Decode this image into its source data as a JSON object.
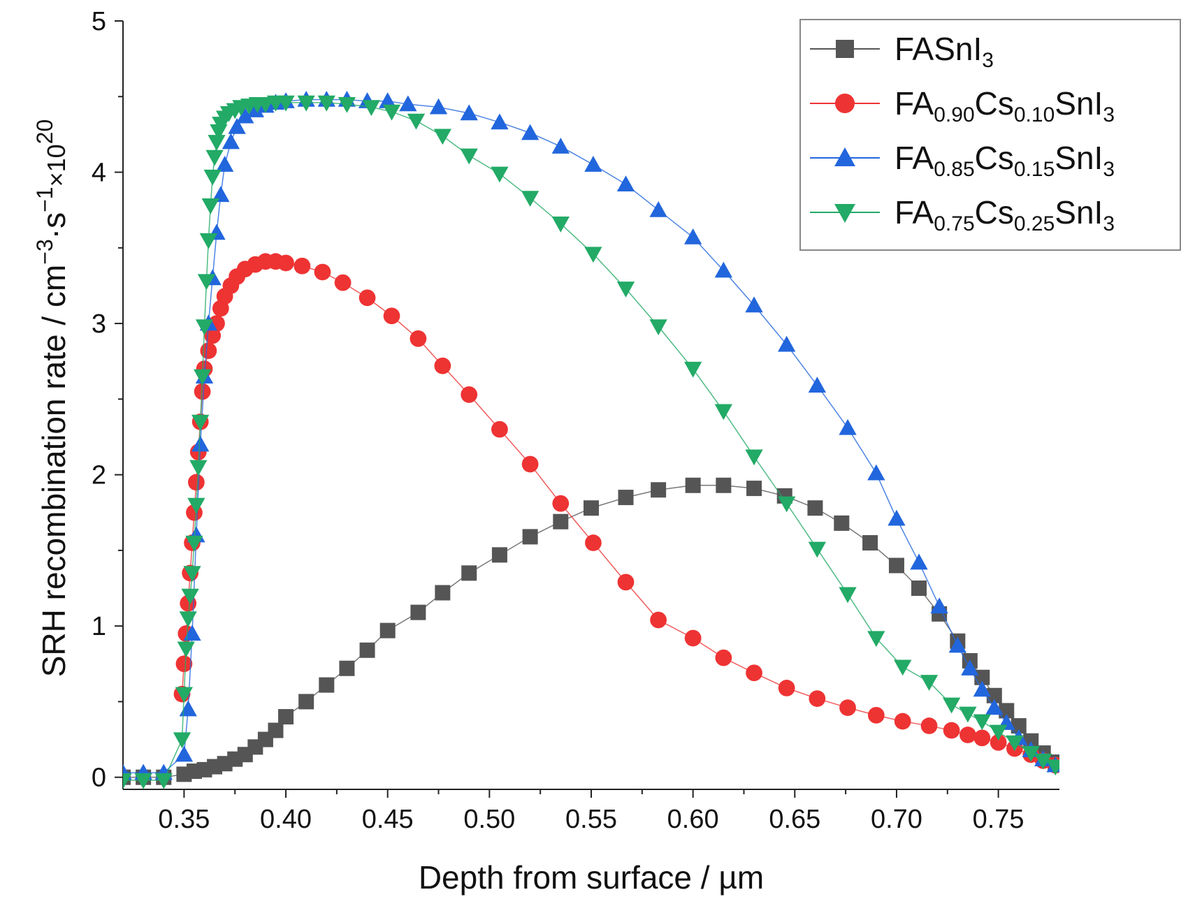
{
  "chart_data": {
    "type": "line",
    "xlabel": "Depth from surface / µm",
    "ylabel": {
      "prefix": "SRH recombination rate / cm",
      "exp1": "−3",
      "mid": "·s",
      "exp2": "−1",
      "times": "×10",
      "exp3": "20"
    },
    "xlim": [
      0.32,
      0.78
    ],
    "ylim": [
      -0.08,
      5.0
    ],
    "x_ticks": [
      "0.35",
      "0.40",
      "0.45",
      "0.50",
      "0.55",
      "0.60",
      "0.65",
      "0.70",
      "0.75"
    ],
    "x_tick_values": [
      0.35,
      0.4,
      0.45,
      0.5,
      0.55,
      0.6,
      0.65,
      0.7,
      0.75
    ],
    "y_ticks": [
      "0",
      "1",
      "2",
      "3",
      "4",
      "5"
    ],
    "y_tick_values": [
      0,
      1,
      2,
      3,
      4,
      5
    ],
    "grid": false,
    "legend_position": "top-right",
    "series": [
      {
        "name_parts": [
          {
            "t": "FASnI"
          },
          {
            "t": "3",
            "sub": true
          }
        ],
        "color": "#555555",
        "marker": "square",
        "x": [
          0.32,
          0.33,
          0.34,
          0.35,
          0.355,
          0.36,
          0.365,
          0.37,
          0.375,
          0.38,
          0.385,
          0.39,
          0.395,
          0.4,
          0.41,
          0.42,
          0.43,
          0.44,
          0.45,
          0.465,
          0.477,
          0.49,
          0.505,
          0.52,
          0.535,
          0.55,
          0.567,
          0.583,
          0.6,
          0.615,
          0.63,
          0.645,
          0.66,
          0.673,
          0.687,
          0.7,
          0.711,
          0.721,
          0.73,
          0.736,
          0.742,
          0.748,
          0.754,
          0.76,
          0.766,
          0.772,
          0.778
        ],
        "y": [
          0.0,
          0.0,
          0.0,
          0.02,
          0.04,
          0.05,
          0.07,
          0.09,
          0.12,
          0.15,
          0.2,
          0.25,
          0.31,
          0.4,
          0.5,
          0.61,
          0.72,
          0.84,
          0.97,
          1.09,
          1.22,
          1.35,
          1.47,
          1.59,
          1.69,
          1.78,
          1.85,
          1.9,
          1.93,
          1.93,
          1.91,
          1.86,
          1.78,
          1.68,
          1.55,
          1.4,
          1.25,
          1.08,
          0.9,
          0.77,
          0.66,
          0.54,
          0.44,
          0.34,
          0.24,
          0.16,
          0.1
        ]
      },
      {
        "name_parts": [
          {
            "t": "FA"
          },
          {
            "t": "0.90",
            "sub": true
          },
          {
            "t": "Cs"
          },
          {
            "t": "0.10",
            "sub": true
          },
          {
            "t": "SnI"
          },
          {
            "t": "3",
            "sub": true
          }
        ],
        "color": "#ee3333",
        "marker": "circle",
        "x": [
          0.349,
          0.35,
          0.351,
          0.352,
          0.353,
          0.354,
          0.355,
          0.356,
          0.357,
          0.358,
          0.359,
          0.36,
          0.362,
          0.364,
          0.366,
          0.368,
          0.37,
          0.373,
          0.376,
          0.38,
          0.385,
          0.39,
          0.395,
          0.4,
          0.408,
          0.418,
          0.428,
          0.44,
          0.452,
          0.465,
          0.477,
          0.49,
          0.505,
          0.52,
          0.535,
          0.551,
          0.567,
          0.583,
          0.6,
          0.615,
          0.63,
          0.646,
          0.661,
          0.676,
          0.69,
          0.703,
          0.716,
          0.727,
          0.735,
          0.742,
          0.75,
          0.758,
          0.766,
          0.772,
          0.778
        ],
        "y": [
          0.55,
          0.75,
          0.95,
          1.15,
          1.35,
          1.55,
          1.75,
          1.95,
          2.15,
          2.35,
          2.55,
          2.7,
          2.82,
          2.92,
          3.0,
          3.1,
          3.18,
          3.25,
          3.31,
          3.36,
          3.39,
          3.41,
          3.41,
          3.4,
          3.38,
          3.34,
          3.27,
          3.17,
          3.05,
          2.9,
          2.72,
          2.53,
          2.3,
          2.07,
          1.81,
          1.55,
          1.29,
          1.04,
          0.92,
          0.79,
          0.69,
          0.59,
          0.52,
          0.46,
          0.41,
          0.37,
          0.34,
          0.31,
          0.28,
          0.26,
          0.23,
          0.19,
          0.15,
          0.11,
          0.08
        ]
      },
      {
        "name_parts": [
          {
            "t": "FA"
          },
          {
            "t": "0.85",
            "sub": true
          },
          {
            "t": "Cs"
          },
          {
            "t": "0.15",
            "sub": true
          },
          {
            "t": "SnI"
          },
          {
            "t": "3",
            "sub": true
          }
        ],
        "color": "#2266dd",
        "marker": "triangle-up",
        "x": [
          0.32,
          0.33,
          0.34,
          0.35,
          0.352,
          0.354,
          0.356,
          0.358,
          0.36,
          0.362,
          0.364,
          0.366,
          0.368,
          0.37,
          0.373,
          0.376,
          0.38,
          0.385,
          0.39,
          0.395,
          0.4,
          0.41,
          0.42,
          0.43,
          0.44,
          0.45,
          0.46,
          0.475,
          0.49,
          0.505,
          0.52,
          0.535,
          0.551,
          0.567,
          0.583,
          0.6,
          0.615,
          0.63,
          0.646,
          0.661,
          0.676,
          0.69,
          0.7,
          0.711,
          0.721,
          0.73,
          0.736,
          0.742,
          0.748,
          0.754,
          0.76,
          0.766,
          0.772,
          0.778
        ],
        "y": [
          0.03,
          0.03,
          0.03,
          0.15,
          0.45,
          0.95,
          1.6,
          2.2,
          2.65,
          3.0,
          3.3,
          3.6,
          3.85,
          4.05,
          4.2,
          4.3,
          4.37,
          4.41,
          4.44,
          4.46,
          4.47,
          4.48,
          4.48,
          4.48,
          4.47,
          4.47,
          4.45,
          4.43,
          4.39,
          4.33,
          4.26,
          4.17,
          4.05,
          3.92,
          3.75,
          3.57,
          3.35,
          3.12,
          2.86,
          2.59,
          2.31,
          2.01,
          1.71,
          1.42,
          1.13,
          0.87,
          0.72,
          0.58,
          0.46,
          0.36,
          0.26,
          0.18,
          0.12,
          0.08
        ]
      },
      {
        "name_parts": [
          {
            "t": "FA"
          },
          {
            "t": "0.75",
            "sub": true
          },
          {
            "t": "Cs"
          },
          {
            "t": "0.25",
            "sub": true
          },
          {
            "t": "SnI"
          },
          {
            "t": "3",
            "sub": true
          }
        ],
        "color": "#22aa66",
        "marker": "triangle-down",
        "x": [
          0.32,
          0.33,
          0.34,
          0.349,
          0.35,
          0.351,
          0.352,
          0.353,
          0.354,
          0.355,
          0.356,
          0.357,
          0.358,
          0.359,
          0.36,
          0.361,
          0.362,
          0.363,
          0.364,
          0.365,
          0.366,
          0.367,
          0.368,
          0.37,
          0.372,
          0.375,
          0.378,
          0.382,
          0.386,
          0.39,
          0.395,
          0.4,
          0.41,
          0.42,
          0.43,
          0.442,
          0.452,
          0.464,
          0.477,
          0.49,
          0.505,
          0.52,
          0.535,
          0.551,
          0.567,
          0.583,
          0.6,
          0.615,
          0.63,
          0.646,
          0.661,
          0.676,
          0.69,
          0.703,
          0.716,
          0.727,
          0.735,
          0.742,
          0.75,
          0.758,
          0.766,
          0.772,
          0.778
        ],
        "y": [
          -0.02,
          -0.02,
          -0.02,
          0.25,
          0.55,
          0.85,
          1.05,
          1.2,
          1.35,
          1.55,
          1.8,
          2.05,
          2.35,
          2.65,
          2.98,
          3.28,
          3.55,
          3.78,
          3.97,
          4.1,
          4.2,
          4.27,
          4.32,
          4.36,
          4.39,
          4.41,
          4.43,
          4.44,
          4.45,
          4.45,
          4.46,
          4.46,
          4.46,
          4.46,
          4.45,
          4.43,
          4.4,
          4.34,
          4.24,
          4.11,
          3.99,
          3.83,
          3.66,
          3.46,
          3.23,
          2.98,
          2.7,
          2.42,
          2.12,
          1.81,
          1.51,
          1.21,
          0.92,
          0.73,
          0.63,
          0.48,
          0.42,
          0.37,
          0.3,
          0.23,
          0.16,
          0.11,
          0.07
        ]
      }
    ]
  }
}
